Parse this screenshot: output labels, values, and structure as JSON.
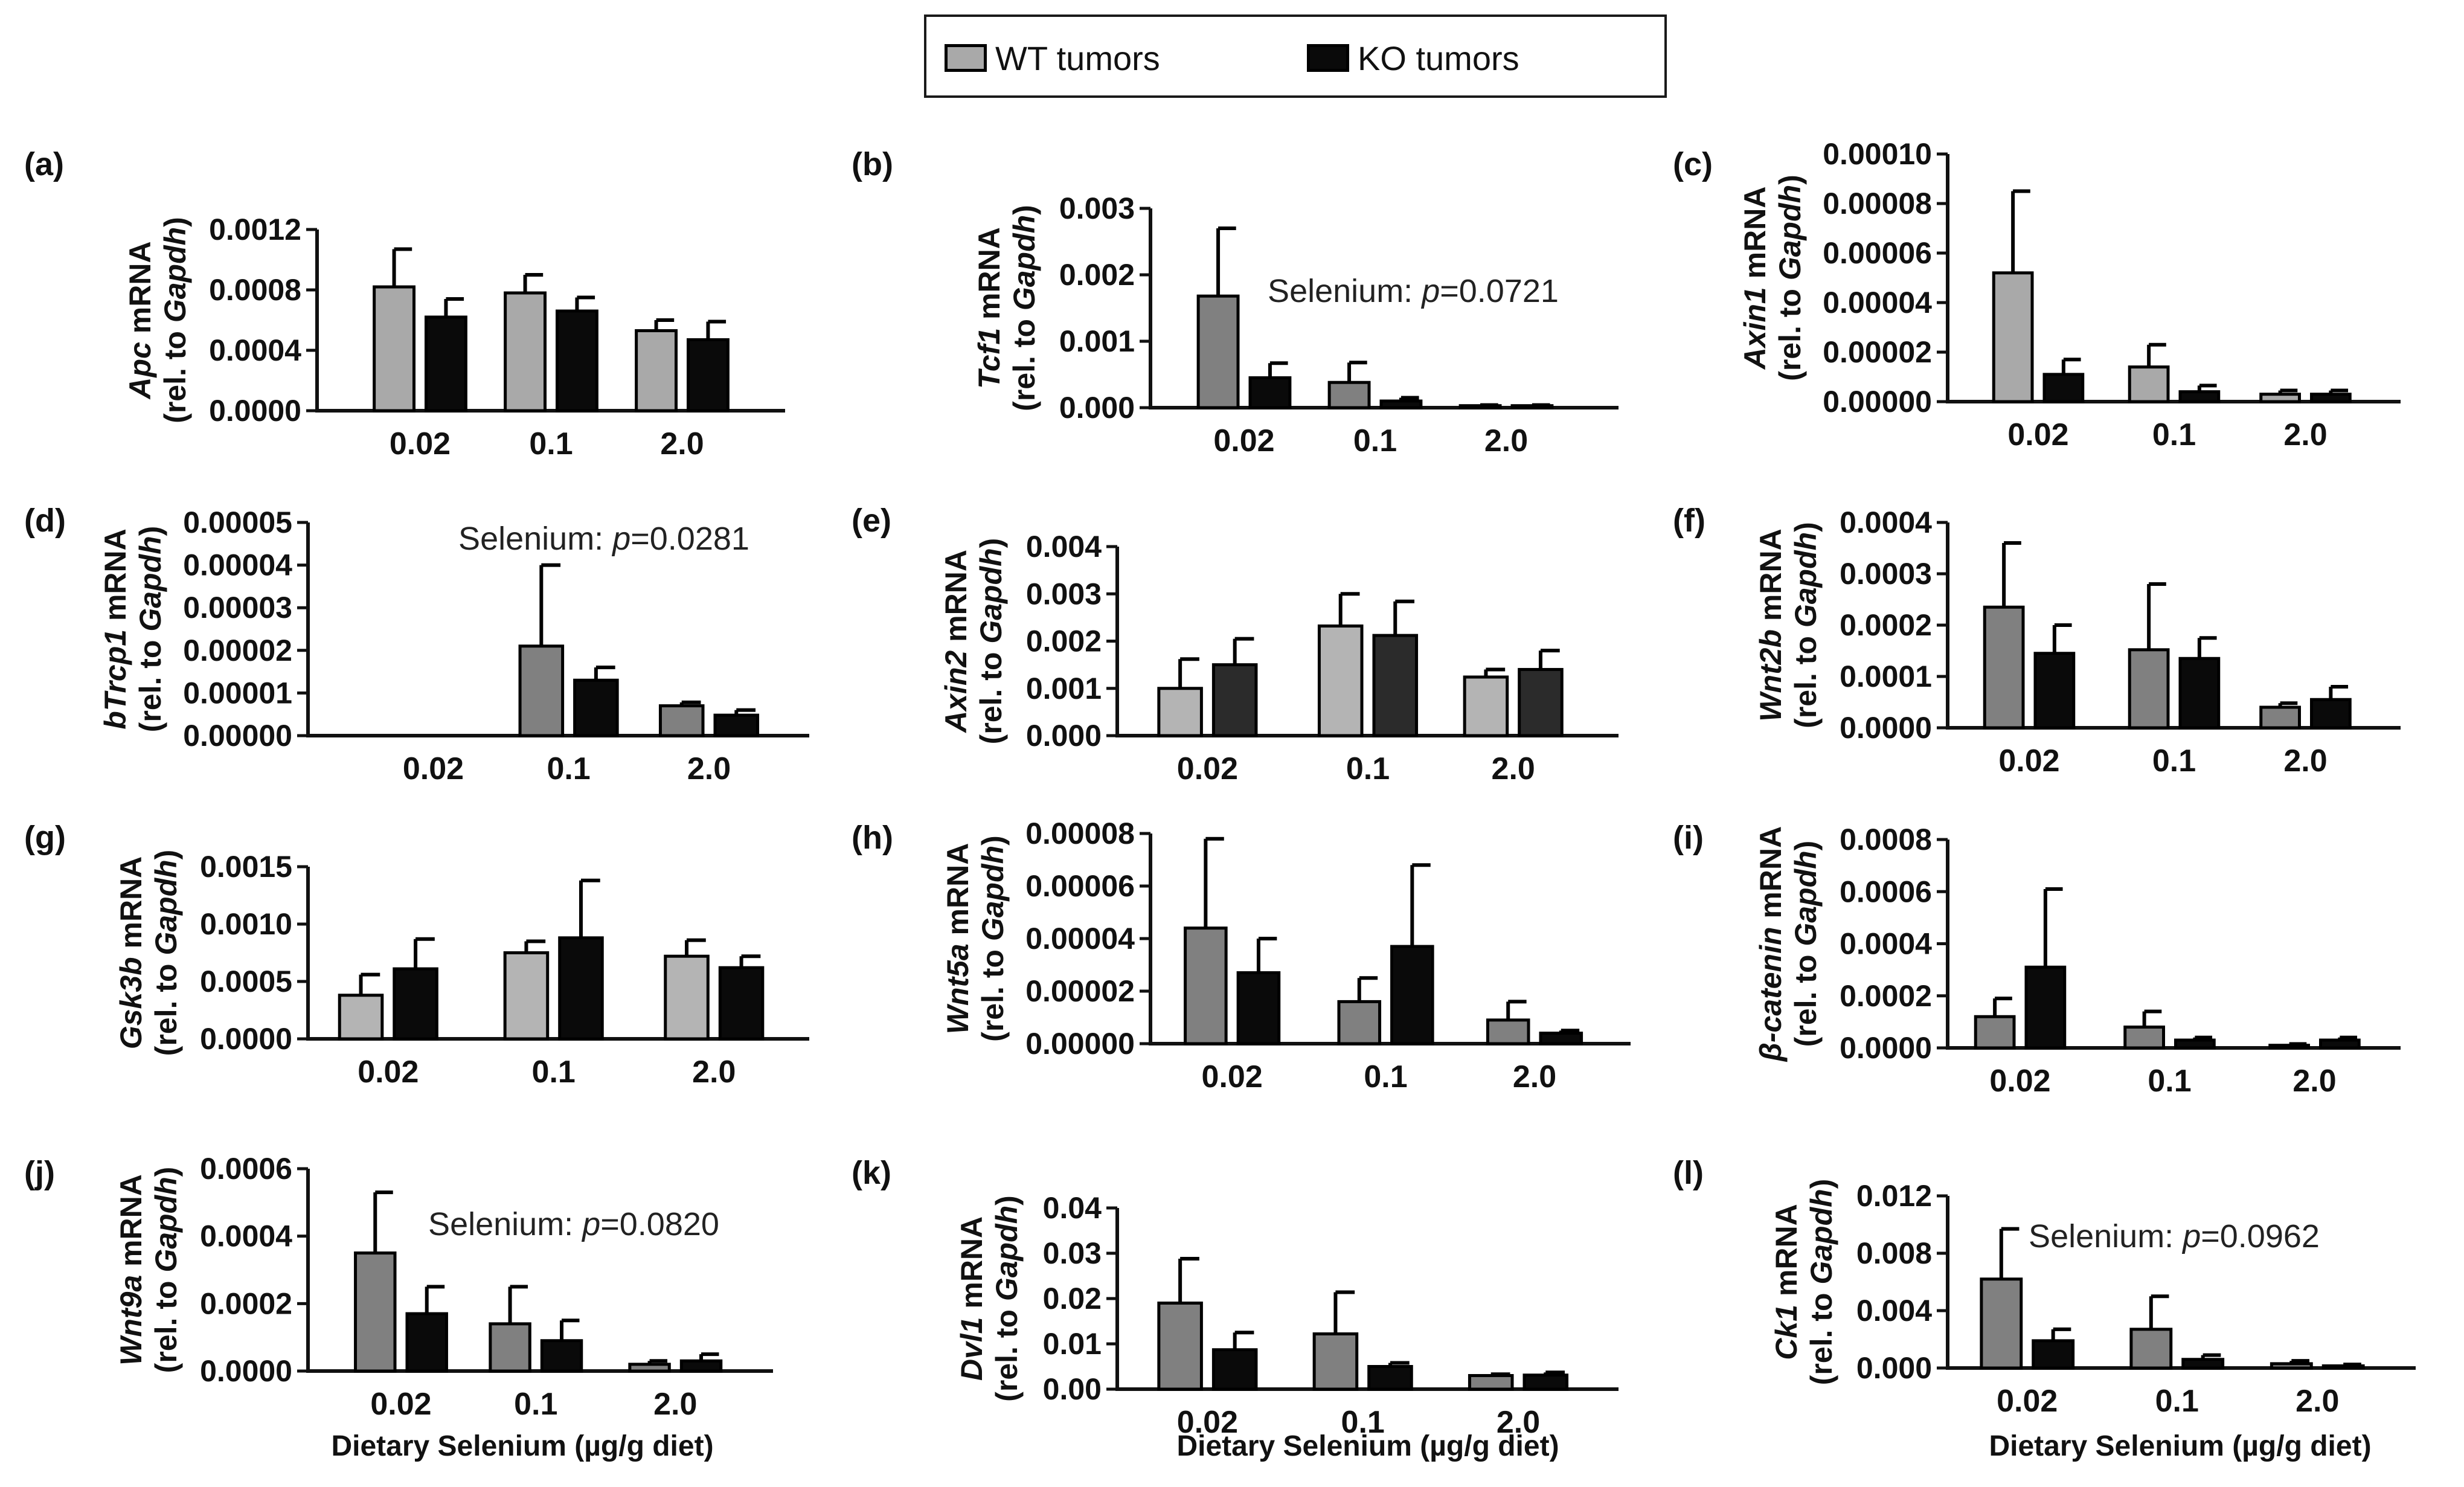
{
  "legend": {
    "wt_label": "WT tumors",
    "ko_label": "KO tumors",
    "wt_color": "#a9a9a9",
    "ko_color": "#0a0a0a"
  },
  "x_axis_title": "Dietary Selenium (µg/g diet)",
  "chart_data": [
    {
      "type": "bar",
      "panel": "(a)",
      "gene": "Apc",
      "ylabel": "Apc mRNA (rel. to Gapdh)",
      "categories": [
        "0.02",
        "0.1",
        "2.0"
      ],
      "ylim": [
        0,
        0.0012
      ],
      "yticks": [
        "0.0000",
        "0.0004",
        "0.0008",
        "0.0012"
      ],
      "series": [
        {
          "name": "WT tumors",
          "values": [
            0.00082,
            0.00078,
            0.00053
          ],
          "errors": [
            0.00025,
            0.00012,
            7e-05
          ],
          "color": "#a9a9a9"
        },
        {
          "name": "KO tumors",
          "values": [
            0.00062,
            0.00066,
            0.00047
          ],
          "errors": [
            0.00012,
            9e-05,
            0.00012
          ],
          "color": "#0a0a0a"
        }
      ]
    },
    {
      "type": "bar",
      "panel": "(b)",
      "gene": "Tcf1",
      "ylabel": "Tcf1 mRNA (rel. to Gapdh)",
      "categories": [
        "0.02",
        "0.1",
        "2.0"
      ],
      "ylim": [
        0,
        0.003
      ],
      "yticks": [
        "0.000",
        "0.001",
        "0.002",
        "0.003"
      ],
      "annotation": "Selenium: p=0.0721",
      "series": [
        {
          "name": "WT tumors",
          "values": [
            0.00168,
            0.00038,
            3e-05
          ],
          "errors": [
            0.00102,
            0.0003,
            1e-05
          ],
          "color": "#808080"
        },
        {
          "name": "KO tumors",
          "values": [
            0.00045,
            0.0001,
            3e-05
          ],
          "errors": [
            0.00022,
            5e-05,
            1e-05
          ],
          "color": "#0a0a0a"
        }
      ]
    },
    {
      "type": "bar",
      "panel": "(c)",
      "gene": "Axin1",
      "ylabel": "Axin1 mRNA (rel. to Gapdh)",
      "categories": [
        "0.02",
        "0.1",
        "2.0"
      ],
      "ylim": [
        0,
        0.0001
      ],
      "yticks": [
        "0.00000",
        "0.00002",
        "0.00004",
        "0.00006",
        "0.00008",
        "0.00010"
      ],
      "series": [
        {
          "name": "WT tumors",
          "values": [
            5.2e-05,
            1.4e-05,
            3e-06
          ],
          "errors": [
            3.3e-05,
            9e-06,
            1.5e-06
          ],
          "color": "#a9a9a9"
        },
        {
          "name": "KO tumors",
          "values": [
            1.1e-05,
            4e-06,
            3e-06
          ],
          "errors": [
            6e-06,
            2.5e-06,
            1.5e-06
          ],
          "color": "#0a0a0a"
        }
      ]
    },
    {
      "type": "bar",
      "panel": "(d)",
      "gene": "bTrcp1",
      "ylabel": "bTrcp1 mRNA (rel. to Gapdh)",
      "categories": [
        "0.02",
        "0.1",
        "2.0"
      ],
      "ylim": [
        0,
        5e-05
      ],
      "yticks": [
        "0.00000",
        "0.00001",
        "0.00002",
        "0.00003",
        "0.00004",
        "0.00005"
      ],
      "annotation": "Selenium: p=0.0281",
      "series": [
        {
          "name": "WT tumors",
          "values": [
            0,
            2.1e-05,
            7e-06
          ],
          "errors": [
            0,
            1.9e-05,
            8e-07
          ],
          "color": "#808080"
        },
        {
          "name": "KO tumors",
          "values": [
            0,
            1.3e-05,
            4.8e-06
          ],
          "errors": [
            0,
            3e-06,
            1.2e-06
          ],
          "color": "#0a0a0a"
        }
      ]
    },
    {
      "type": "bar",
      "panel": "(e)",
      "gene": "Axin2",
      "ylabel": "Axin2 mRNA (rel. to Gapdh)",
      "categories": [
        "0.02",
        "0.1",
        "2.0"
      ],
      "ylim": [
        0,
        0.004
      ],
      "yticks": [
        "0.000",
        "0.001",
        "0.002",
        "0.003",
        "0.004"
      ],
      "series": [
        {
          "name": "WT tumors",
          "values": [
            0.001,
            0.00232,
            0.00124
          ],
          "errors": [
            0.00062,
            0.00068,
            0.00016
          ],
          "color": "#b4b4b4"
        },
        {
          "name": "KO tumors",
          "values": [
            0.0015,
            0.00212,
            0.0014
          ],
          "errors": [
            0.00055,
            0.00072,
            0.0004
          ],
          "color": "#2b2b2b"
        }
      ]
    },
    {
      "type": "bar",
      "panel": "(f)",
      "gene": "Wnt2b",
      "ylabel": "Wnt2b mRNA (rel. to Gapdh)",
      "categories": [
        "0.02",
        "0.1",
        "2.0"
      ],
      "ylim": [
        0,
        0.0004
      ],
      "yticks": [
        "0.0000",
        "0.0001",
        "0.0002",
        "0.0003",
        "0.0004"
      ],
      "series": [
        {
          "name": "WT tumors",
          "values": [
            0.000235,
            0.000152,
            4e-05
          ],
          "errors": [
            0.000125,
            0.000128,
            8e-06
          ],
          "color": "#808080"
        },
        {
          "name": "KO tumors",
          "values": [
            0.000145,
            0.000135,
            5.5e-05
          ],
          "errors": [
            5.5e-05,
            4e-05,
            2.5e-05
          ],
          "color": "#0a0a0a"
        }
      ]
    },
    {
      "type": "bar",
      "panel": "(g)",
      "gene": "Gsk3b",
      "ylabel": "Gsk3b mRNA (rel. to Gapdh)",
      "categories": [
        "0.02",
        "0.1",
        "2.0"
      ],
      "ylim": [
        0,
        0.0015
      ],
      "yticks": [
        "0.0000",
        "0.0005",
        "0.0010",
        "0.0015"
      ],
      "series": [
        {
          "name": "WT tumors",
          "values": [
            0.00038,
            0.00075,
            0.00072
          ],
          "errors": [
            0.00018,
            0.0001,
            0.00014
          ],
          "color": "#b4b4b4"
        },
        {
          "name": "KO tumors",
          "values": [
            0.00061,
            0.00088,
            0.00062
          ],
          "errors": [
            0.00026,
            0.0005,
            0.0001
          ],
          "color": "#0a0a0a"
        }
      ]
    },
    {
      "type": "bar",
      "panel": "(h)",
      "gene": "Wnt5a",
      "ylabel": "Wnt5a mRNA (rel. to Gapdh)",
      "categories": [
        "0.02",
        "0.1",
        "2.0"
      ],
      "ylim": [
        0,
        8e-05
      ],
      "yticks": [
        "0.00000",
        "0.00002",
        "0.00004",
        "0.00006",
        "0.00008"
      ],
      "series": [
        {
          "name": "WT tumors",
          "values": [
            4.4e-05,
            1.6e-05,
            9e-06
          ],
          "errors": [
            3.4e-05,
            9e-06,
            7e-06
          ],
          "color": "#808080"
        },
        {
          "name": "KO tumors",
          "values": [
            2.7e-05,
            3.7e-05,
            4e-06
          ],
          "errors": [
            1.3e-05,
            3.1e-05,
            1e-06
          ],
          "color": "#0a0a0a"
        }
      ]
    },
    {
      "type": "bar",
      "panel": "(i)",
      "gene": "β-catenin",
      "ylabel": "β-catenin mRNA (rel. to Gapdh)",
      "categories": [
        "0.02",
        "0.1",
        "2.0"
      ],
      "ylim": [
        0,
        0.0008
      ],
      "yticks": [
        "0.0000",
        "0.0002",
        "0.0004",
        "0.0006",
        "0.0008"
      ],
      "series": [
        {
          "name": "WT tumors",
          "values": [
            0.00012,
            8e-05,
            1e-05
          ],
          "errors": [
            7e-05,
            6e-05,
            5e-06
          ],
          "color": "#808080"
        },
        {
          "name": "KO tumors",
          "values": [
            0.00031,
            3e-05,
            3e-05
          ],
          "errors": [
            0.0003,
            1e-05,
            1e-05
          ],
          "color": "#0a0a0a"
        }
      ]
    },
    {
      "type": "bar",
      "panel": "(j)",
      "gene": "Wnt9a",
      "ylabel": "Wnt9a mRNA (rel. to Gapdh)",
      "categories": [
        "0.02",
        "0.1",
        "2.0"
      ],
      "ylim": [
        0,
        0.0006
      ],
      "yticks": [
        "0.0000",
        "0.0002",
        "0.0004",
        "0.0006"
      ],
      "annotation": "Selenium: p=0.0820",
      "series": [
        {
          "name": "WT tumors",
          "values": [
            0.00035,
            0.00014,
            2e-05
          ],
          "errors": [
            0.00018,
            0.00011,
            1e-05
          ],
          "color": "#808080"
        },
        {
          "name": "KO tumors",
          "values": [
            0.00017,
            9e-05,
            3e-05
          ],
          "errors": [
            8e-05,
            6e-05,
            2e-05
          ],
          "color": "#0a0a0a"
        }
      ]
    },
    {
      "type": "bar",
      "panel": "(k)",
      "gene": "Dvl1",
      "ylabel": "Dvl1 mRNA (rel. to Gapdh)",
      "categories": [
        "0.02",
        "0.1",
        "2.0"
      ],
      "ylim": [
        0,
        0.04
      ],
      "yticks": [
        "0.00",
        "0.01",
        "0.02",
        "0.03",
        "0.04"
      ],
      "series": [
        {
          "name": "WT tumors",
          "values": [
            0.019,
            0.0122,
            0.003
          ],
          "errors": [
            0.0098,
            0.0092,
            0.0003
          ],
          "color": "#808080"
        },
        {
          "name": "KO tumors",
          "values": [
            0.0087,
            0.005,
            0.0031
          ],
          "errors": [
            0.0038,
            0.0008,
            0.0006
          ],
          "color": "#0a0a0a"
        }
      ]
    },
    {
      "type": "bar",
      "panel": "(l)",
      "gene": "Ck1",
      "ylabel": "Ck1 mRNA (rel. to Gapdh)",
      "categories": [
        "0.02",
        "0.1",
        "2.0"
      ],
      "ylim": [
        0,
        0.012
      ],
      "yticks": [
        "0.000",
        "0.004",
        "0.008",
        "0.012"
      ],
      "annotation": "Selenium: p=0.0962",
      "series": [
        {
          "name": "WT tumors",
          "values": [
            0.0062,
            0.0027,
            0.0003
          ],
          "errors": [
            0.0035,
            0.0023,
            0.0002
          ],
          "color": "#808080"
        },
        {
          "name": "KO tumors",
          "values": [
            0.0019,
            0.0006,
            0.00015
          ],
          "errors": [
            0.0008,
            0.0003,
            0.0001
          ],
          "color": "#0a0a0a"
        }
      ]
    }
  ]
}
